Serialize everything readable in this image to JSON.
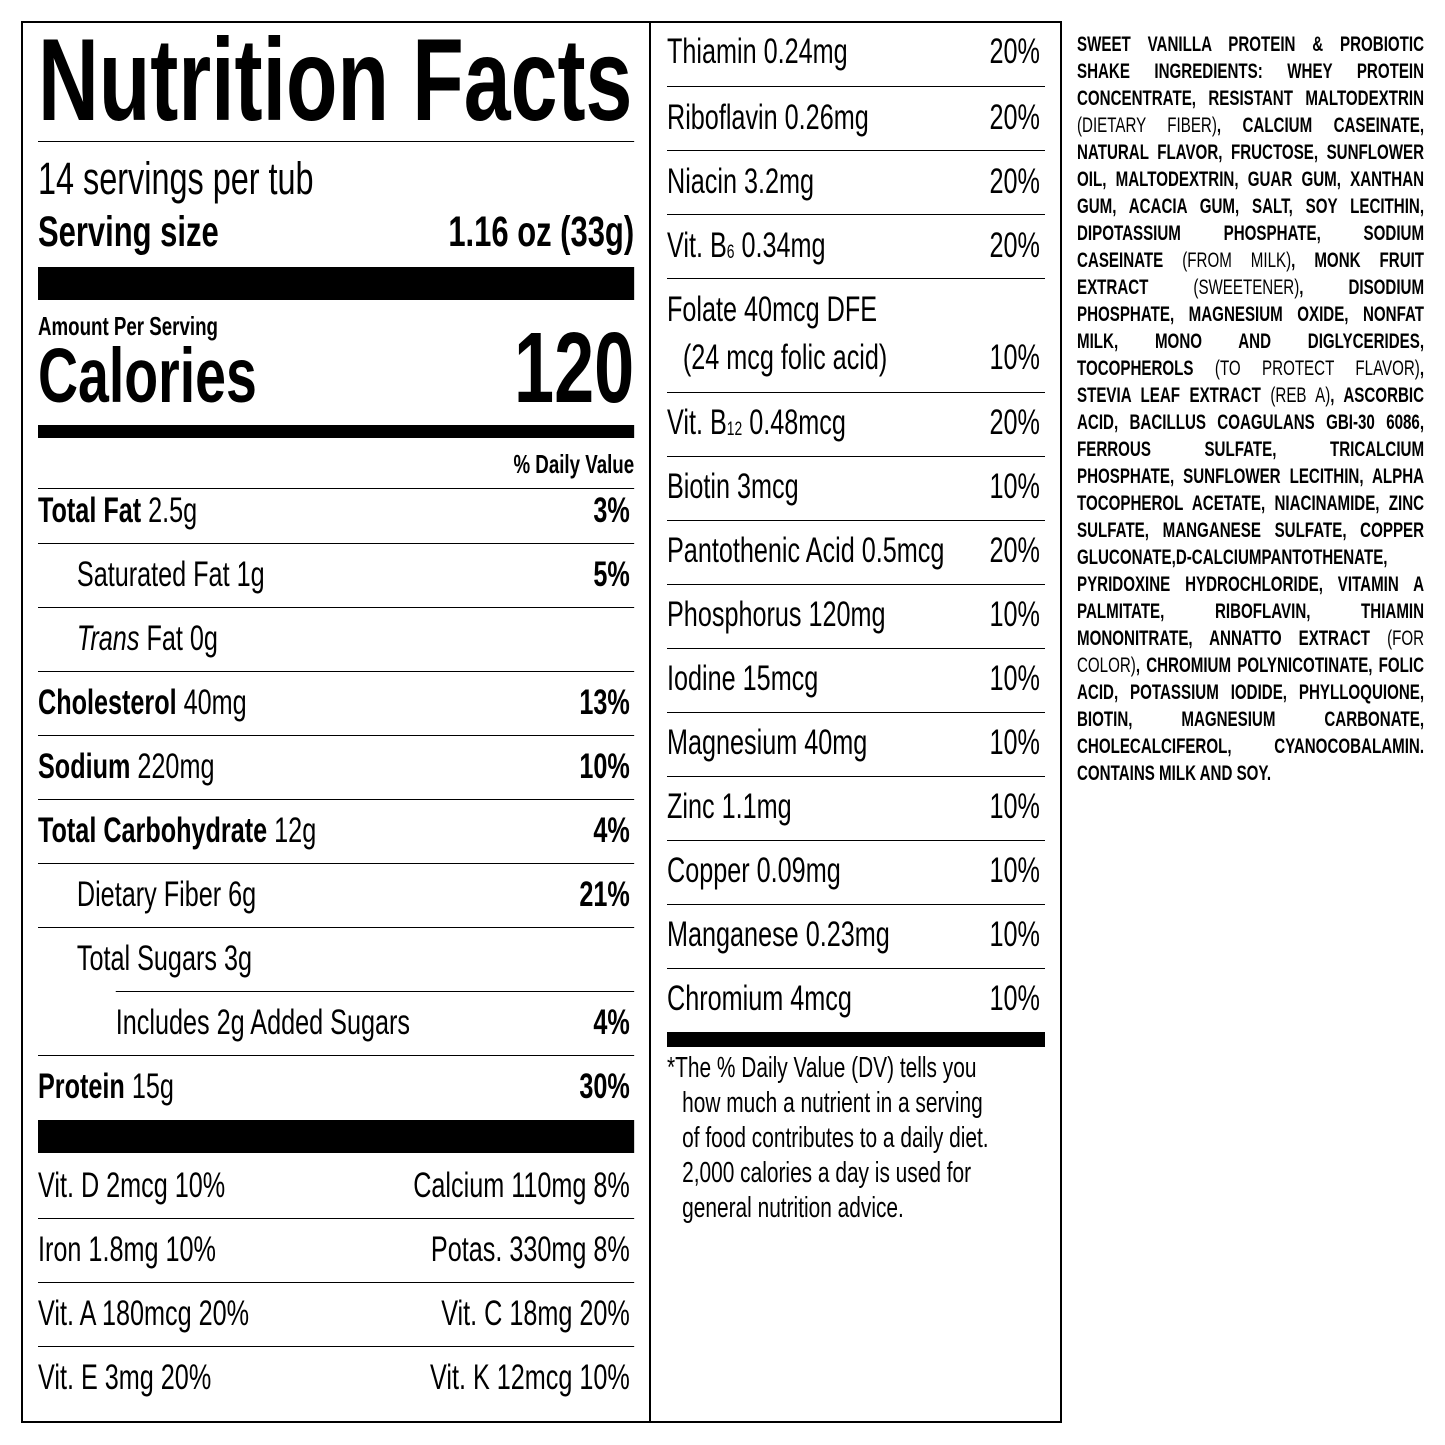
{
  "label": {
    "title": "Nutrition Facts",
    "servings": "14 servings per tub",
    "serving_size_label": "Serving size",
    "serving_size_value": "1.16 oz (33g)",
    "amount_per_serving": "Amount Per Serving",
    "calories_label": "Calories",
    "calories_value": "120",
    "dv_header": "% Daily Value",
    "nutrients": [
      {
        "name": "Total Fat",
        "amount": "2.5g",
        "dv": "3%",
        "level": 0
      },
      {
        "name": "Saturated Fat",
        "amount": "1g",
        "dv": "5%",
        "level": 1
      },
      {
        "name_italic": "Trans",
        "name": "Fat",
        "amount": "0g",
        "dv": "",
        "level": 1
      },
      {
        "name": "Cholesterol",
        "amount": "40mg",
        "dv": "13%",
        "level": 0
      },
      {
        "name": "Sodium",
        "amount": "220mg",
        "dv": "10%",
        "level": 0
      },
      {
        "name": "Total Carbohydrate",
        "amount": "12g",
        "dv": "4%",
        "level": 0
      },
      {
        "name": "Dietary Fiber",
        "amount": "6g",
        "dv": "21%",
        "level": 1
      },
      {
        "name": "Total Sugars",
        "amount": "3g",
        "dv": "",
        "level": 1
      },
      {
        "name": "Includes 2g Added Sugars",
        "amount": "",
        "dv": "4%",
        "level": 2
      },
      {
        "name": "Protein",
        "amount": "15g",
        "dv": "30%",
        "level": 0
      }
    ],
    "vitamins": [
      [
        "Vit. D 2mcg 10%",
        "Calcium 110mg 8%"
      ],
      [
        "Iron 1.8mg 10%",
        "Potas. 330mg 8%"
      ],
      [
        "Vit. A 180mcg 20%",
        "Vit. C 18mg 20%"
      ],
      [
        "Vit. E 3mg 20%",
        "Vit. K 12mcg 10%"
      ]
    ]
  },
  "micronutrients": [
    {
      "pre": "Thiamin 0.24mg",
      "dv": "20%"
    },
    {
      "pre": "Riboflavin 0.26mg",
      "dv": "20%"
    },
    {
      "pre": "Niacin 3.2mg",
      "dv": "20%"
    },
    {
      "pre": "Vit. B",
      "sub": "6",
      "post": " 0.34mg",
      "dv": "20%"
    },
    {
      "pre": "Folate 40mcg DFE",
      "line2": "(24 mcg folic acid)",
      "dv": "10%"
    },
    {
      "pre": "Vit. B",
      "sub": "12",
      "post": " 0.48mcg",
      "dv": "20%"
    },
    {
      "pre": "Biotin 3mcg",
      "dv": "10%"
    },
    {
      "pre": "Pantothenic Acid 0.5mcg",
      "dv": "20%"
    },
    {
      "pre": "Phosphorus 120mg",
      "dv": "10%"
    },
    {
      "pre": "Iodine 15mcg",
      "dv": "10%"
    },
    {
      "pre": "Magnesium 40mg",
      "dv": "10%"
    },
    {
      "pre": "Zinc 1.1mg",
      "dv": "10%"
    },
    {
      "pre": "Copper 0.09mg",
      "dv": "10%"
    },
    {
      "pre": "Manganese 0.23mg",
      "dv": "10%"
    },
    {
      "pre": "Chromium 4mcg",
      "dv": "10%"
    }
  ],
  "footnote": [
    "*The % Daily Value (DV) tells you",
    "how much a nutrient in a serving",
    "of food contributes to a daily diet.",
    "2,000 calories a day is used for",
    "general nutrition advice."
  ],
  "ingredients": [
    {
      "text": "SWEET VANILLA PROTEIN & PROBIOTIC SHAKE INGREDIENTS: WHEY PROTEIN CONCENTRATE, RESISTANT MALTODEXTRIN ",
      "bold": true
    },
    {
      "text": "(DIETARY FIBER)",
      "bold": false
    },
    {
      "text": ", CALCIUM CASEINATE, NATURAL FLAVOR, FRUCTOSE, SUNFLOWER OIL, MALTODEXTRIN, GUAR GUM, XANTHAN GUM, ACACIA GUM, SALT, SOY LECITHIN, DIPOTASSIUM PHOSPHATE, SODIUM CASEINATE ",
      "bold": true
    },
    {
      "text": "(FROM MILK)",
      "bold": false
    },
    {
      "text": ", MONK FRUIT EXTRACT ",
      "bold": true
    },
    {
      "text": "(SWEETENER)",
      "bold": false
    },
    {
      "text": ", DISODIUM PHOSPHATE, MAGNESIUM OXIDE, NONFAT MILK, MONO AND DIGLYCERIDES, TOCOPHEROLS ",
      "bold": true
    },
    {
      "text": "(TO PROTECT FLAVOR)",
      "bold": false
    },
    {
      "text": ", STEVIA LEAF EXTRACT ",
      "bold": true
    },
    {
      "text": "(REB A)",
      "bold": false
    },
    {
      "text": ", ASCORBIC ACID, BACILLUS COAGULANS GBI-30 6086, FERROUS SULFATE, TRICALCIUM PHOSPHATE, SUNFLOWER LECITHIN, ALPHA TOCOPHEROL ACETATE, NIACINAMIDE, ZINC SULFATE, MANGANESE SULFATE, COPPER GLUCONATE,D-CALCIUMPANTOTHENATE, PYRIDOXINE HYDROCHLORIDE, VITAMIN A PALMITATE, RIBOFLAVIN, THIAMIN MONONITRATE, ANNATTO EXTRACT ",
      "bold": true
    },
    {
      "text": "(FOR COLOR)",
      "bold": false
    },
    {
      "text": ", CHROMIUM POLYNICOTINATE, FOLIC ACID, POTASSIUM IODIDE, PHYLLOQUIONE, BIOTIN, MAGNESIUM CARBONATE, CHOLECALCIFEROL, CYANOCOBALAMIN. CONTAINS MILK AND SOY.",
      "bold": true
    }
  ]
}
